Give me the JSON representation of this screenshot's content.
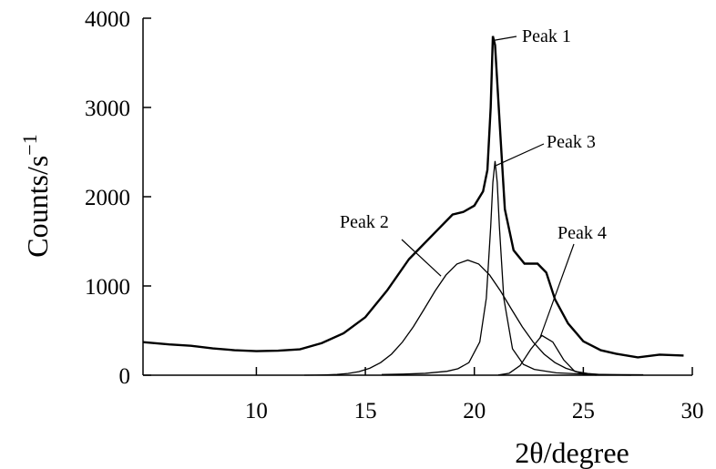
{
  "chart_data": {
    "type": "line",
    "xlabel": "2θ/degree",
    "ylabel": "Counts/s",
    "ylabel_exponent": "−1",
    "xlim": [
      4.8,
      30
    ],
    "xticks": [
      10,
      15,
      20,
      25,
      30
    ],
    "ylim": [
      0,
      4000
    ],
    "yticks": [
      0,
      1000,
      2000,
      3000,
      4000
    ],
    "series": [
      {
        "color": "#000000",
        "x": [
          4.8,
          6,
          7,
          8,
          9,
          10,
          11,
          12,
          13,
          14,
          15,
          16,
          17,
          18,
          19,
          19.5,
          20,
          20.4,
          20.6,
          20.75,
          20.85,
          20.95,
          21.2,
          21.4,
          21.8,
          22.3,
          22.9,
          23.3,
          23.7,
          24.3,
          25,
          25.8,
          26.5,
          27.5,
          28.5,
          29.6
        ],
        "values": [
          370,
          345,
          330,
          300,
          280,
          270,
          275,
          290,
          360,
          470,
          650,
          950,
          1300,
          1550,
          1800,
          1830,
          1900,
          2060,
          2300,
          3000,
          3800,
          3700,
          2670,
          1860,
          1400,
          1250,
          1250,
          1150,
          850,
          580,
          380,
          280,
          240,
          200,
          230,
          220
        ]
      },
      {
        "color": "#000000",
        "x": [
          12.2,
          12.7,
          13.2,
          13.7,
          14.2,
          14.7,
          15.2,
          15.7,
          16.2,
          16.7,
          17.2,
          17.7,
          18.2,
          18.7,
          19.2,
          19.7,
          20.2,
          20.7,
          21.2,
          21.7,
          22.2,
          22.7,
          23.2,
          23.7,
          24.2,
          24.7,
          25.2,
          25.7,
          26.2,
          26.7,
          27.2
        ],
        "values": [
          0,
          1,
          4,
          9,
          19,
          40,
          78,
          141,
          236,
          371,
          542,
          741,
          944,
          1123,
          1246,
          1290,
          1246,
          1123,
          944,
          741,
          542,
          371,
          236,
          141,
          78,
          40,
          19,
          9,
          4,
          1,
          0
        ]
      },
      {
        "color": "#000000",
        "x": [
          15.75,
          16.75,
          17.75,
          18.75,
          19.25,
          19.75,
          20.25,
          20.55,
          20.75,
          20.85,
          20.95,
          21.05,
          21.15,
          21.35,
          21.75,
          22.25,
          22.75,
          23.75,
          24.75,
          25.75,
          26.75,
          27.75
        ],
        "values": [
          8,
          12,
          21,
          44,
          73,
          141,
          373,
          864,
          1662,
          2160,
          2400,
          2160,
          1662,
          864,
          296,
          121,
          65,
          27,
          15,
          9,
          6,
          5
        ]
      },
      {
        "color": "#000000",
        "x": [
          21.1,
          21.6,
          22.1,
          22.6,
          23.1,
          23.6,
          24.1,
          24.6,
          25.1,
          25.6
        ],
        "values": [
          2,
          22,
          108,
          294,
          445,
          372,
          172,
          44,
          6,
          0
        ]
      }
    ],
    "annotations": [
      {
        "text": "Peak 1",
        "x": 20.85,
        "y": 3750
      },
      {
        "text": "Peak 2",
        "x": 18.47,
        "y": 1110
      },
      {
        "text": "Peak 3",
        "x": 21.0,
        "y": 2350
      },
      {
        "text": "Peak 4",
        "x": 23.0,
        "y": 410
      }
    ]
  }
}
